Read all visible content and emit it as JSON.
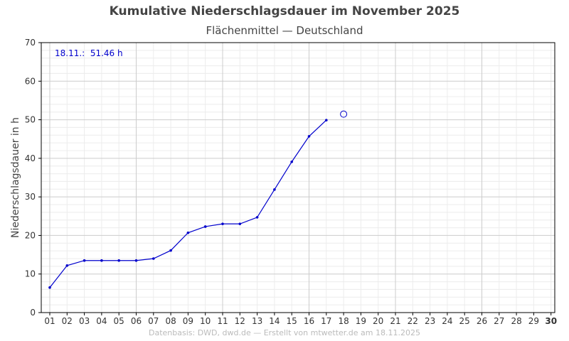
{
  "header": {
    "title": "Kumulative Niederschlagsdauer im November 2025",
    "subtitle": "Flächenmittel — Deutschland"
  },
  "footer": {
    "text": "Datenbasis: DWD, dwd.de — Erstellt von mtwetter.de am 18.11.2025"
  },
  "colors": {
    "series": "#0000cc",
    "grid_major": "#cccccc",
    "grid_minor": "#ececec",
    "axis": "#000000"
  },
  "chart_data": {
    "type": "line",
    "title": "Kumulative Niederschlagsdauer im November 2025",
    "subtitle": "Flächenmittel — Deutschland",
    "xlabel": "",
    "ylabel": "Niederschlagsdauer in h",
    "xlim": [
      1,
      30
    ],
    "ylim": [
      0,
      70
    ],
    "yticks": [
      0,
      10,
      20,
      30,
      40,
      50,
      60,
      70
    ],
    "xtick_labels": [
      "01",
      "02",
      "03",
      "04",
      "05",
      "06",
      "07",
      "08",
      "09",
      "10",
      "11",
      "12",
      "13",
      "14",
      "15",
      "16",
      "17",
      "18",
      "19",
      "20",
      "21",
      "22",
      "23",
      "24",
      "25",
      "26",
      "27",
      "28",
      "29",
      "30"
    ],
    "grid": true,
    "series": [
      {
        "x": [
          1,
          2,
          3,
          4,
          5,
          6,
          7,
          8,
          9,
          10,
          11,
          12,
          13,
          14,
          15,
          16,
          17
        ],
        "values": [
          6.5,
          12.2,
          13.5,
          13.5,
          13.5,
          13.5,
          14.0,
          16.1,
          20.7,
          22.3,
          23.0,
          23.0,
          24.7,
          31.9,
          39.1,
          45.7,
          49.9
        ]
      }
    ],
    "current_point": {
      "x": 18,
      "y": 51.46
    },
    "annotation": "18.11.:  51.46 h"
  }
}
